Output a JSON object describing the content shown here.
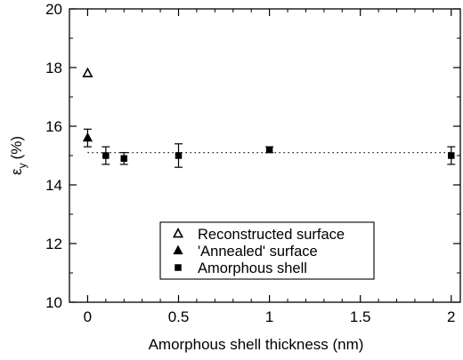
{
  "chart_data": {
    "type": "scatter",
    "xlabel": "Amorphous shell thickness (nm)",
    "ylabel_main": "ε",
    "ylabel_sub": "y",
    "ylabel_unit": "(%)",
    "xlim": [
      -0.1,
      2.05
    ],
    "ylim": [
      10,
      20
    ],
    "x_ticks": [
      0,
      0.5,
      1,
      1.5,
      2
    ],
    "x_tick_labels": [
      "0",
      "0.5",
      "1",
      "1.5",
      "2"
    ],
    "y_ticks": [
      10,
      12,
      14,
      16,
      18,
      20
    ],
    "y_tick_labels": [
      "10",
      "12",
      "14",
      "16",
      "18",
      "20"
    ],
    "grid": false,
    "legend_position": "bottom-right",
    "reference_line": {
      "y": 15.1,
      "x_from": 0,
      "x_to": 2,
      "style": "dotted"
    },
    "series": [
      {
        "name": "Reconstructed surface",
        "marker": "triangle-open",
        "points": [
          {
            "x": 0,
            "y": 17.8
          }
        ]
      },
      {
        "name": "'Annealed' surface",
        "marker": "triangle-filled",
        "points": [
          {
            "x": 0,
            "y": 15.6,
            "err": 0.3
          }
        ]
      },
      {
        "name": "Amorphous shell",
        "marker": "square-filled",
        "points": [
          {
            "x": 0.1,
            "y": 15.0,
            "err": 0.3
          },
          {
            "x": 0.2,
            "y": 14.9,
            "err": 0.2
          },
          {
            "x": 0.5,
            "y": 15.0,
            "err": 0.4
          },
          {
            "x": 1.0,
            "y": 15.2,
            "err": 0.1
          },
          {
            "x": 2.0,
            "y": 15.0,
            "err": 0.3
          }
        ]
      }
    ]
  }
}
